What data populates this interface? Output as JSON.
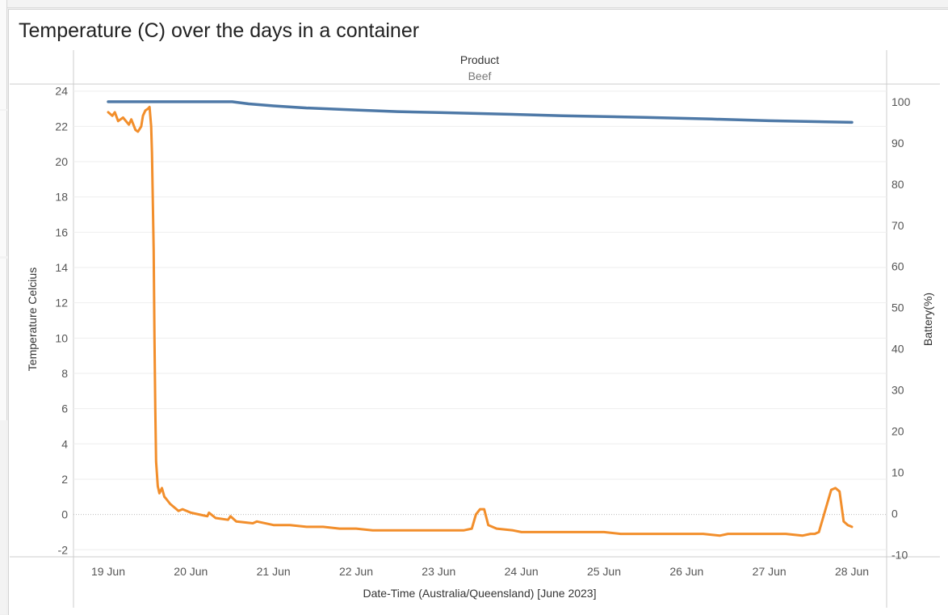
{
  "title": "Temperature (C) over the days in a container",
  "header": {
    "field": "Product",
    "value": "Beef"
  },
  "colors": {
    "temperature": "#f28e2b",
    "battery": "#4e79a7",
    "gridline": "#eeeeee",
    "zeroline": "#bbbbbb",
    "axis": "#cccccc"
  },
  "chart_data": {
    "type": "line",
    "title": "Temperature (C) over the days in a container",
    "xlabel": "Date-Time (Australia/Queensland) [June 2023]",
    "ylabel": "Temperature Celcius",
    "ylabel_right": "Battery(%)",
    "x_ticks": [
      "19 Jun",
      "20 Jun",
      "21 Jun",
      "22 Jun",
      "23 Jun",
      "24 Jun",
      "25 Jun",
      "26 Jun",
      "27 Jun",
      "28 Jun"
    ],
    "y_ticks": [
      "24",
      "22",
      "20",
      "18",
      "16",
      "14",
      "12",
      "10",
      "8",
      "6",
      "4",
      "2",
      "0",
      "-2"
    ],
    "y2_ticks": [
      "100",
      "90",
      "80",
      "70",
      "60",
      "50",
      "40",
      "30",
      "20",
      "10",
      "0",
      "-10"
    ],
    "ylim": [
      -2.4,
      24.4
    ],
    "y2lim": [
      -10.5,
      104.3
    ],
    "xlim_days_from_19_Jun": [
      -0.42,
      9.42
    ],
    "grid": "horizontal",
    "series": [
      {
        "name": "",
        "axis": "left",
        "color": "#f28e2b",
        "x": [
          0,
          0.05,
          0.08,
          0.12,
          0.18,
          0.25,
          0.28,
          0.33,
          0.36,
          0.4,
          0.42,
          0.45,
          0.48,
          0.5,
          0.52,
          0.53,
          0.55,
          0.56,
          0.57,
          0.58,
          0.6,
          0.62,
          0.65,
          0.68,
          0.7,
          0.75,
          0.8,
          0.85,
          0.9,
          0.95,
          1.0,
          1.1,
          1.2,
          1.22,
          1.3,
          1.45,
          1.48,
          1.55,
          1.75,
          1.8,
          2.0,
          2.2,
          2.4,
          2.6,
          2.8,
          3.0,
          3.2,
          3.4,
          3.6,
          3.8,
          4.0,
          4.1,
          4.2,
          4.3,
          4.4,
          4.45,
          4.5,
          4.55,
          4.6,
          4.7,
          4.9,
          5.0,
          5.2,
          5.4,
          5.6,
          5.8,
          6.0,
          6.2,
          6.4,
          6.6,
          6.8,
          7.0,
          7.2,
          7.4,
          7.5,
          7.52,
          7.6,
          7.8,
          8.0,
          8.2,
          8.4,
          8.5,
          8.55,
          8.6,
          8.65,
          8.7,
          8.75,
          8.8,
          8.85,
          8.9,
          8.95,
          9.0
        ],
        "y": [
          22.8,
          22.6,
          22.8,
          22.3,
          22.5,
          22.1,
          22.4,
          21.8,
          21.7,
          22.0,
          22.6,
          22.9,
          23.0,
          23.1,
          22.0,
          20.5,
          15.0,
          10.0,
          6.0,
          3.0,
          1.6,
          1.2,
          1.5,
          1.0,
          0.9,
          0.6,
          0.4,
          0.2,
          0.3,
          0.2,
          0.1,
          0.0,
          -0.1,
          0.1,
          -0.2,
          -0.3,
          -0.1,
          -0.4,
          -0.5,
          -0.4,
          -0.6,
          -0.6,
          -0.7,
          -0.7,
          -0.8,
          -0.8,
          -0.9,
          -0.9,
          -0.9,
          -0.9,
          -0.9,
          -0.9,
          -0.9,
          -0.9,
          -0.8,
          0.0,
          0.3,
          0.3,
          -0.6,
          -0.8,
          -0.9,
          -1.0,
          -1.0,
          -1.0,
          -1.0,
          -1.0,
          -1.0,
          -1.1,
          -1.1,
          -1.1,
          -1.1,
          -1.1,
          -1.1,
          -1.2,
          -1.1,
          -1.1,
          -1.1,
          -1.1,
          -1.1,
          -1.1,
          -1.2,
          -1.1,
          -1.1,
          -1.0,
          -0.2,
          0.6,
          1.4,
          1.5,
          1.3,
          -0.4,
          -0.6,
          -0.7
        ]
      },
      {
        "name": "",
        "axis": "right",
        "color": "#4e79a7",
        "x": [
          0,
          1.5,
          1.7,
          2.0,
          2.4,
          3.0,
          3.5,
          4.0,
          4.8,
          5.5,
          6.5,
          7.3,
          8.0,
          9.0
        ],
        "y": [
          100,
          100,
          99.5,
          99,
          98.5,
          98,
          97.6,
          97.4,
          97,
          96.6,
          96.2,
          95.8,
          95.4,
          95
        ]
      }
    ]
  }
}
